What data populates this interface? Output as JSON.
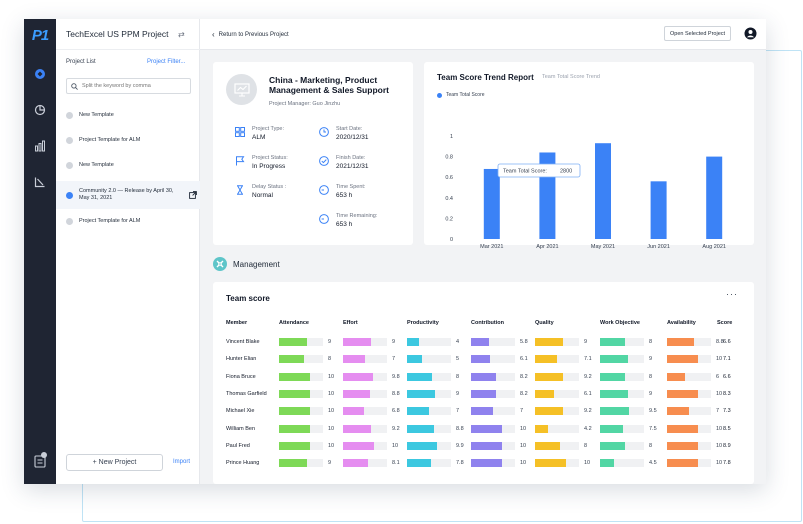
{
  "app": {
    "title": "TechExcel US PPM Project",
    "logo": "P1"
  },
  "sidebar": {
    "project_list_label": "Project List",
    "project_filter_label": "Project Filter...",
    "search_placeholder": "Split the keyword by comma",
    "projects": [
      {
        "label": "New Template",
        "active": false
      },
      {
        "label": "Project Template for ALM",
        "active": false
      },
      {
        "label": "New Template",
        "active": false
      },
      {
        "label": "Community 2.0 — Release by April 30, May 31, 2021",
        "active": true
      },
      {
        "label": "Project Template for ALM",
        "active": false
      }
    ],
    "new_project_label": "+ New Project",
    "import_label": "Import"
  },
  "topbar": {
    "back_label": "Return to Previous Project",
    "open_label": "Open Selected Project"
  },
  "project": {
    "name": "China - Marketing, Product Management & Sales Support",
    "manager": "Project Manager: Guo Jinzhu",
    "type_label": "Project Type:",
    "type_value": "ALM",
    "start_label": "Start Date:",
    "start_value": "2020/12/31",
    "status_label": "Project Status:",
    "status_value": "In Progress",
    "finish_label": "Finish Date:",
    "finish_value": "2021/12/31",
    "delay_label": "Delay Status :",
    "delay_value": "Normal",
    "spent_label": "Time Spent:",
    "spent_value": "653 h",
    "remaining_label": "Time Remaining:",
    "remaining_value": "653 h"
  },
  "chart_data": {
    "type": "bar",
    "title": "Team Score Trend Report",
    "subtitle": "Team Total Score Trend",
    "categories": [
      "Mar 2021",
      "Apr 2021",
      "May 2021",
      "Jun 2021",
      "Aug 2021"
    ],
    "series": [
      {
        "name": "Team Total Score",
        "values": [
          0.68,
          0.84,
          0.93,
          0.56,
          0.8
        ]
      }
    ],
    "ylim": [
      0,
      1
    ],
    "yticks": [
      "0",
      "0.2",
      "0.4",
      "0.6",
      "0.8",
      "1"
    ],
    "tooltip": {
      "label": "Team Total Score:",
      "value": "2800"
    },
    "color": "#3b82f6"
  },
  "management": {
    "section_label": "Management",
    "team_title": "Team score",
    "more_label": "···",
    "columns": [
      "Member",
      "Attendance",
      "Effort",
      "Productivity",
      "Contribution",
      "Quality",
      "Work Objective",
      "Availability",
      "Score"
    ],
    "metric_colors": [
      "#7ed957",
      "#e58df0",
      "#3cc8e0",
      "#8f82ee",
      "#f5c026",
      "#52d6a4",
      "#f78d4f"
    ],
    "members": [
      {
        "name": "Vincent Blake",
        "values": [
          9,
          9,
          4,
          5.8,
          9,
          8,
          8.8
        ],
        "score": "6.6"
      },
      {
        "name": "Hunter Elian",
        "values": [
          8,
          7,
          5,
          6.1,
          7.1,
          9,
          10
        ],
        "score": "7.1"
      },
      {
        "name": "Fiona Bruce",
        "values": [
          10,
          9.8,
          8,
          8.2,
          9.2,
          8,
          6
        ],
        "score": "6.6"
      },
      {
        "name": "Thomas Garfield",
        "values": [
          10,
          8.8,
          9,
          8.2,
          6.1,
          9,
          10
        ],
        "score": "8.3"
      },
      {
        "name": "Michael Xie",
        "values": [
          10,
          6.8,
          7,
          7,
          9.2,
          9.5,
          7
        ],
        "score": "7.3"
      },
      {
        "name": "William Ben",
        "values": [
          10,
          9.2,
          8.8,
          10,
          4.2,
          7.5,
          10
        ],
        "score": "8.5"
      },
      {
        "name": "Paul Fred",
        "values": [
          10,
          10,
          9.9,
          10,
          8,
          8,
          10
        ],
        "score": "8.9"
      },
      {
        "name": "Prince Huang",
        "values": [
          9,
          8.1,
          7.8,
          10,
          10,
          4.5,
          10
        ],
        "score": "7.8"
      }
    ]
  }
}
